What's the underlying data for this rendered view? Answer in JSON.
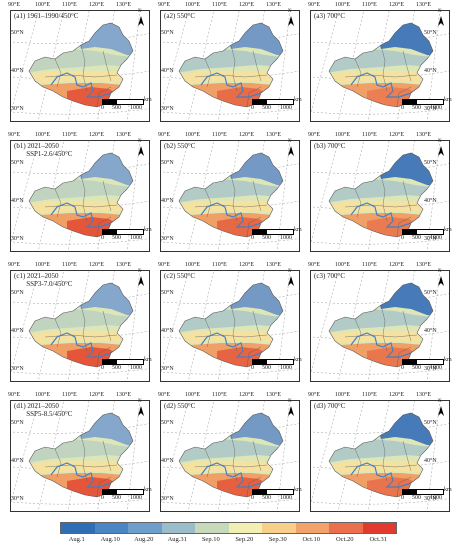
{
  "panels": [
    {
      "label": "(a1) 1961–1990/450°C"
    },
    {
      "label": "(a2) 550°C"
    },
    {
      "label": "(a3) 700°C"
    },
    {
      "label": "(b1) 2021–2050\n       SSP1-2.6/450°C"
    },
    {
      "label": "(b2) 550°C"
    },
    {
      "label": "(b3) 700°C"
    },
    {
      "label": "(c1) 2021–2050\n       SSP3-7.0/450°C"
    },
    {
      "label": "(c2) 550°C"
    },
    {
      "label": "(c3) 700°C"
    },
    {
      "label": "(d1) 2021–2050\n       SSP5-8.5/450°C"
    },
    {
      "label": "(d2) 550°C"
    },
    {
      "label": "(d3) 700°C"
    }
  ],
  "lon_ticks": [
    "90°E",
    "100°E",
    "110°E",
    "120°E",
    "130°E"
  ],
  "lat_ticks_left": [
    "50°N",
    "40°N",
    "30°N"
  ],
  "lat_ticks_right": [
    "50°N",
    "40°N",
    "30°N"
  ],
  "compass_letter": "N",
  "scale": {
    "labels": [
      "0",
      "500",
      "1000"
    ],
    "unit": "km"
  },
  "legend": {
    "labels": [
      "Aug.1",
      "Aug.10",
      "Aug.20",
      "Aug.31",
      "Sep.10",
      "Sep.20",
      "Sep.30",
      "Oct.10",
      "Oct.20",
      "Oct.31"
    ],
    "colors": [
      "#2f6db5",
      "#4a86c4",
      "#6e9fcc",
      "#9bbcc9",
      "#c6d9b9",
      "#f1efb2",
      "#f7cf8a",
      "#f3a26a",
      "#ec6f4d",
      "#e23a2f"
    ]
  },
  "region_colors": {
    "far_north": [
      "#7fa3cb",
      "#6d95c4",
      "#3e74b8"
    ],
    "north": "#a9c4c9",
    "mid": "#dde6b7",
    "south": "#f6e2a0",
    "far_south": "#f0a067",
    "hot": "#e4553a",
    "river": "#3f80c8"
  }
}
